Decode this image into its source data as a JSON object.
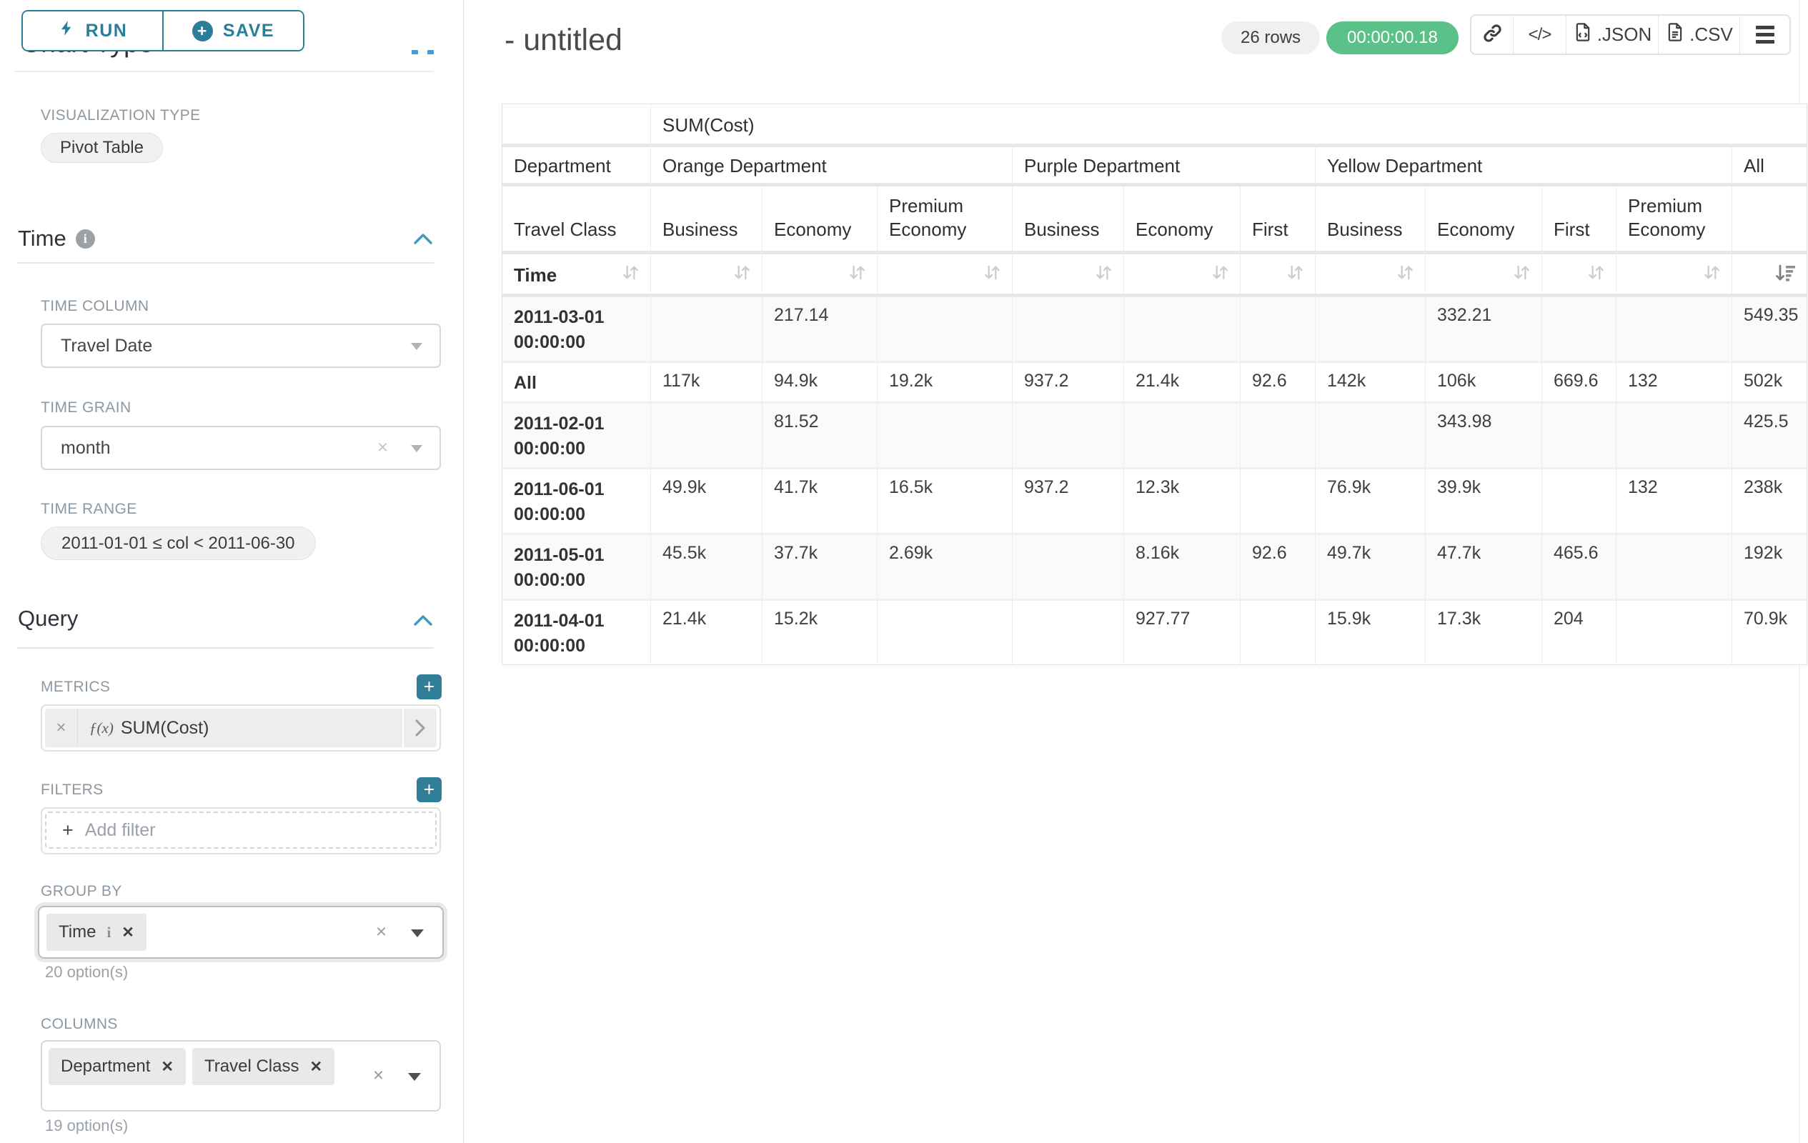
{
  "colors": {
    "accent": "#2b7e97",
    "timer_green": "#5ac189",
    "chevron_blue": "#3b9cbd"
  },
  "sidebar": {
    "run_label": "RUN",
    "save_label": "SAVE",
    "scrolled_heading": "Chart Type",
    "viz_label": "VISUALIZATION TYPE",
    "viz_value": "Pivot Table",
    "time_title": "Time",
    "time_column_label": "TIME COLUMN",
    "time_column_value": "Travel Date",
    "time_grain_label": "TIME GRAIN",
    "time_grain_value": "month",
    "time_range_label": "TIME RANGE",
    "time_range_value": "2011-01-01 ≤ col < 2011-06-30",
    "query_title": "Query",
    "metrics_label": "METRICS",
    "metric_fn": "ƒ(x)",
    "metric_name": "SUM(Cost)",
    "filters_label": "FILTERS",
    "add_filter_label": "Add filter",
    "group_by_label": "GROUP BY",
    "group_by_chips": [
      {
        "label": "Time",
        "info": true
      }
    ],
    "group_by_hint": "20 option(s)",
    "columns_label": "COLUMNS",
    "columns_chips": [
      {
        "label": "Department"
      },
      {
        "label": "Travel Class"
      }
    ],
    "columns_hint": "19 option(s)"
  },
  "header": {
    "title": "- untitled",
    "rows_badge": "26 rows",
    "timer_badge": "00:00:00.18",
    "code_glyph": "</>",
    "export_json": ".JSON",
    "export_csv": ".CSV"
  },
  "chart_data": {
    "type": "table",
    "metric_header": "SUM(Cost)",
    "col_dimension": "Department",
    "row_dimension_header": "Travel Class",
    "row_axis_label": "Time",
    "sort_active_column": "All",
    "column_groups": [
      {
        "label": "Orange Department",
        "children": [
          "Business",
          "Economy",
          "Premium Economy"
        ]
      },
      {
        "label": "Purple Department",
        "children": [
          "Business",
          "Economy",
          "First"
        ]
      },
      {
        "label": "Yellow Department",
        "children": [
          "Business",
          "Economy",
          "First",
          "Premium Economy"
        ]
      },
      {
        "label": "All",
        "children": [
          ""
        ]
      }
    ],
    "rows": [
      {
        "label": "2011-03-01 00:00:00",
        "values": [
          "",
          "217.14",
          "",
          "",
          "",
          "",
          "",
          "332.21",
          "",
          "",
          "549.35"
        ]
      },
      {
        "label": "All",
        "values": [
          "117k",
          "94.9k",
          "19.2k",
          "937.2",
          "21.4k",
          "92.6",
          "142k",
          "106k",
          "669.6",
          "132",
          "502k"
        ]
      },
      {
        "label": "2011-02-01 00:00:00",
        "values": [
          "",
          "81.52",
          "",
          "",
          "",
          "",
          "",
          "343.98",
          "",
          "",
          "425.5"
        ]
      },
      {
        "label": "2011-06-01 00:00:00",
        "values": [
          "49.9k",
          "41.7k",
          "16.5k",
          "937.2",
          "12.3k",
          "",
          "76.9k",
          "39.9k",
          "",
          "132",
          "238k"
        ]
      },
      {
        "label": "2011-05-01 00:00:00",
        "values": [
          "45.5k",
          "37.7k",
          "2.69k",
          "",
          "8.16k",
          "92.6",
          "49.7k",
          "47.7k",
          "465.6",
          "",
          "192k"
        ]
      },
      {
        "label": "2011-04-01 00:00:00",
        "values": [
          "21.4k",
          "15.2k",
          "",
          "",
          "927.77",
          "",
          "15.9k",
          "17.3k",
          "204",
          "",
          "70.9k"
        ]
      }
    ]
  }
}
